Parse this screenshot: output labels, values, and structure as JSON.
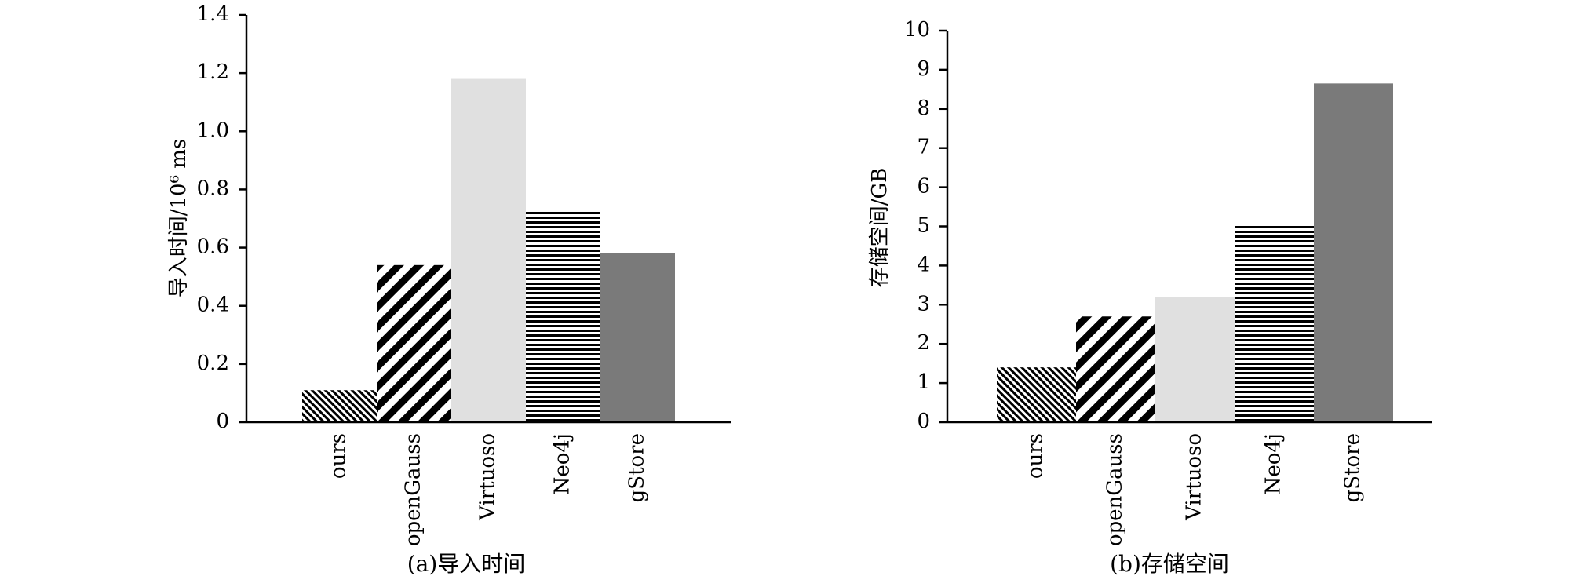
{
  "chart_data": [
    {
      "type": "bar",
      "caption": "(a)导入时间",
      "ylabel": "导入时间/10⁶ ms",
      "categories": [
        "ours",
        "openGauss",
        "Virtuoso",
        "Neo4j",
        "gStore"
      ],
      "values": [
        0.11,
        0.54,
        1.18,
        0.73,
        0.58
      ],
      "ylim": [
        0,
        1.4
      ],
      "yticks": [
        0,
        0.2,
        0.4,
        0.6,
        0.8,
        1.0,
        1.2,
        1.4
      ],
      "ytick_labels": [
        "0",
        "0.2",
        "0.4",
        "0.6",
        "0.8",
        "1.0",
        "1.2",
        "1.4"
      ],
      "patterns": [
        "fine-diagonal-hatch",
        "wide-diagonal-stripes",
        "light-gray",
        "horizontal-lines",
        "dark-gray"
      ],
      "grid": false,
      "legend": "none"
    },
    {
      "type": "bar",
      "caption": "(b)存储空间",
      "ylabel": "存储空间/GB",
      "categories": [
        "ours",
        "openGauss",
        "Virtuoso",
        "Neo4j",
        "gStore"
      ],
      "values": [
        1.4,
        2.7,
        3.2,
        5.05,
        8.65
      ],
      "ylim": [
        0,
        10
      ],
      "yticks": [
        0,
        1,
        2,
        3,
        4,
        5,
        6,
        7,
        8,
        9,
        10
      ],
      "ytick_labels": [
        "0",
        "1",
        "2",
        "3",
        "4",
        "5",
        "6",
        "7",
        "8",
        "9",
        "10"
      ],
      "patterns": [
        "fine-diagonal-hatch",
        "wide-diagonal-stripes",
        "light-gray",
        "horizontal-lines",
        "dark-gray"
      ],
      "grid": false,
      "legend": "none"
    }
  ],
  "colors": {
    "light_gray": "#e0e0e0",
    "dark_gray": "#7a7a7a",
    "ink": "#000000"
  }
}
